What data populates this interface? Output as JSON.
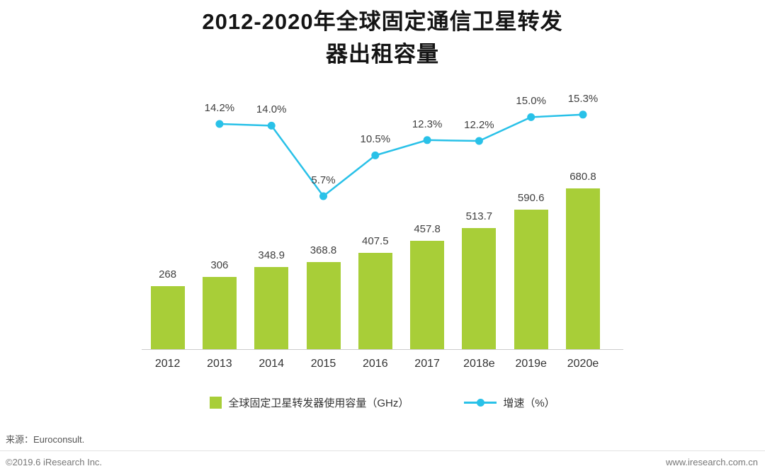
{
  "header": {
    "title_line1": "2012-2020年全球固定通信卫星转发",
    "title_line2": "器出租容量"
  },
  "chart_data": {
    "type": "bar",
    "title": "2012-2020年全球固定通信卫星转发器出租容量",
    "categories": [
      "2012",
      "2013",
      "2014",
      "2015",
      "2016",
      "2017",
      "2018e",
      "2019e",
      "2020e"
    ],
    "series": [
      {
        "name": "全球固定卫星转发器使用容量（GHz）",
        "type": "bar",
        "values": [
          268,
          306,
          348.9,
          368.8,
          407.5,
          457.8,
          513.7,
          590.6,
          680.8
        ],
        "labels": [
          "268",
          "306",
          "348.9",
          "368.8",
          "407.5",
          "457.8",
          "513.7",
          "590.6",
          "680.8"
        ],
        "color": "#a8ce38"
      },
      {
        "name": "增速（%）",
        "type": "line",
        "values": [
          null,
          14.2,
          14.0,
          5.7,
          10.5,
          12.3,
          12.2,
          15.0,
          15.3
        ],
        "labels": [
          null,
          "14.2%",
          "14.0%",
          "5.7%",
          "10.5%",
          "12.3%",
          "12.2%",
          "15.0%",
          "15.3%"
        ],
        "color": "#29c1e8"
      }
    ],
    "legend_position": "bottom",
    "grid": false,
    "xlabel": "",
    "ylabel": ""
  },
  "legend": {
    "bar_label": "全球固定卫星转发器使用容量（GHz）",
    "line_label": "增速（%）"
  },
  "footer": {
    "source": "来源：Euroconsult.",
    "copyright": "©2019.6 iResearch Inc.",
    "website": "www.iresearch.com.cn"
  }
}
